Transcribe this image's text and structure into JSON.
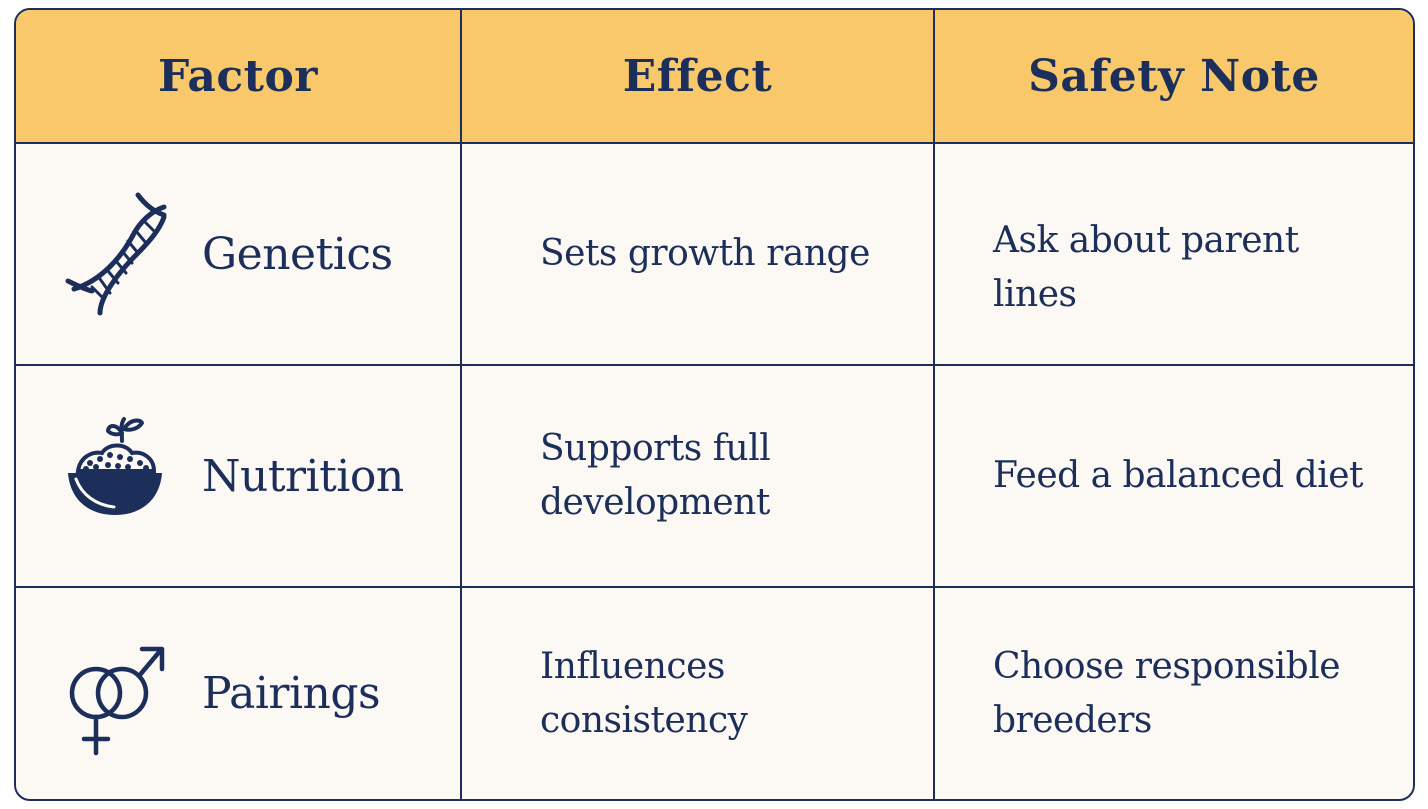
{
  "table": {
    "headers": {
      "factor": "Factor",
      "effect": "Effect",
      "safety_note": "Safety Note"
    },
    "rows": [
      {
        "icon": "dna-icon",
        "factor": "Genetics",
        "effect": "Sets growth range",
        "safety_note": "Ask about parent lines"
      },
      {
        "icon": "food-bowl-sprout-icon",
        "factor": "Nutrition",
        "effect": "Supports full development",
        "safety_note": "Feed a balanced diet"
      },
      {
        "icon": "male-female-symbol-icon",
        "factor": "Pairings",
        "effect": "Influences consistency",
        "safety_note": "Choose responsible breeders"
      }
    ]
  },
  "colors": {
    "header_bg": "#f8c86a",
    "body_bg": "#fcf8f4",
    "ink": "#1c2f5a"
  }
}
